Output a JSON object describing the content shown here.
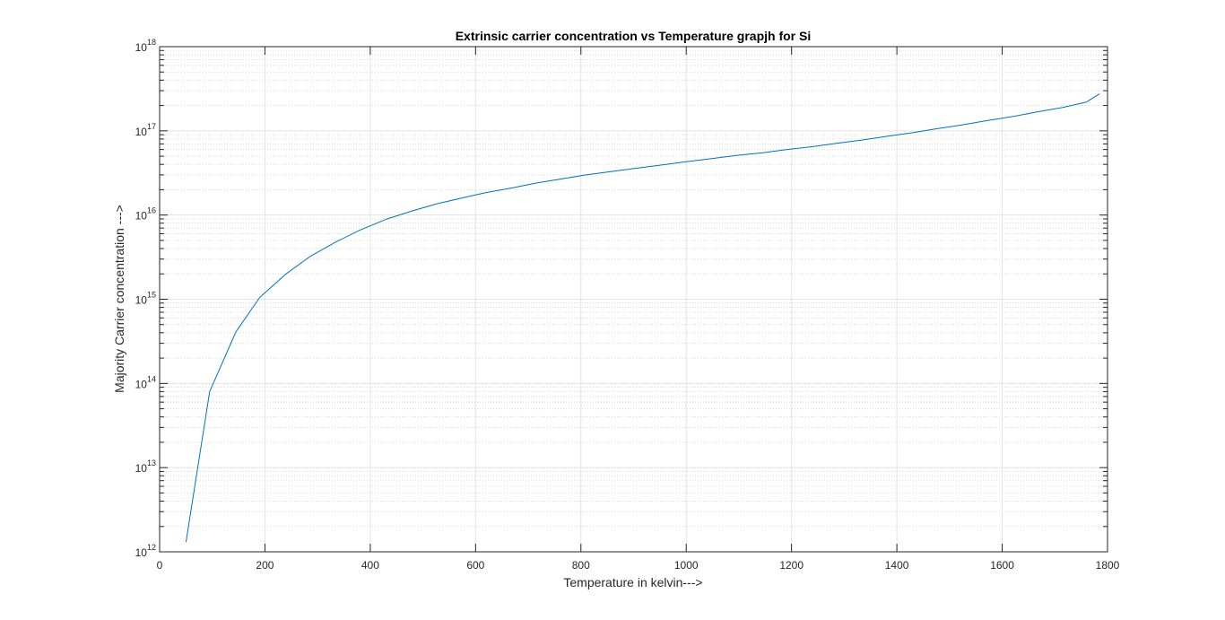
{
  "chart_data": {
    "type": "line",
    "title": "Extrinsic carrier concentration vs Temperature grapjh for Si",
    "xlabel": "Temperature in kelvin--->",
    "ylabel": "Majority Carrier concentration --->",
    "xlim": [
      0,
      1800
    ],
    "ylim": [
      1000000000000.0,
      1e+18
    ],
    "yscale": "log",
    "grid": true,
    "minor_grid": true,
    "line_color": "#0072BD",
    "x_ticks": [
      0,
      200,
      400,
      600,
      800,
      1000,
      1200,
      1400,
      1600,
      1800
    ],
    "x_tick_labels": [
      "0",
      "200",
      "400",
      "600",
      "800",
      "1000",
      "1200",
      "1400",
      "1600",
      "1800"
    ],
    "y_ticks": [
      {
        "base": "10",
        "exp": "12",
        "value": 1000000000000.0
      },
      {
        "base": "10",
        "exp": "13",
        "value": 10000000000000.0
      },
      {
        "base": "10",
        "exp": "14",
        "value": 100000000000000.0
      },
      {
        "base": "10",
        "exp": "15",
        "value": 1000000000000000.0
      },
      {
        "base": "10",
        "exp": "16",
        "value": 1e+16
      },
      {
        "base": "10",
        "exp": "17",
        "value": 1e+17
      },
      {
        "base": "10",
        "exp": "18",
        "value": 1e+18
      }
    ],
    "series": [
      {
        "x": [
          50,
          95,
          145,
          190,
          240,
          285,
          335,
          380,
          430,
          480,
          525,
          575,
          620,
          670,
          715,
          765,
          810,
          860,
          905,
          955,
          1000,
          1050,
          1095,
          1145,
          1190,
          1240,
          1285,
          1335,
          1380,
          1430,
          1475,
          1525,
          1570,
          1620,
          1665,
          1715,
          1760,
          1785
        ],
        "y": [
          1300000000000.0,
          80000000000000.0,
          410000000000000.0,
          1050000000000000.0,
          2000000000000000.0,
          3200000000000000.0,
          4800000000000000.0,
          6600000000000000.0,
          8900000000000000.0,
          1.12e+16,
          1.35e+16,
          1.6e+16,
          1.85e+16,
          2.1e+16,
          2.4e+16,
          2.7e+16,
          3e+16,
          3.3e+16,
          3.6e+16,
          3.95e+16,
          4.3e+16,
          4.7e+16,
          5.1e+16,
          5.5e+16,
          6e+16,
          6.5e+16,
          7.1e+16,
          7.8e+16,
          8.6e+16,
          9.5e+16,
          1.06e+17,
          1.18e+17,
          1.32e+17,
          1.48e+17,
          1.67e+17,
          1.9e+17,
          2.2e+17,
          2.75e+17
        ]
      }
    ]
  }
}
